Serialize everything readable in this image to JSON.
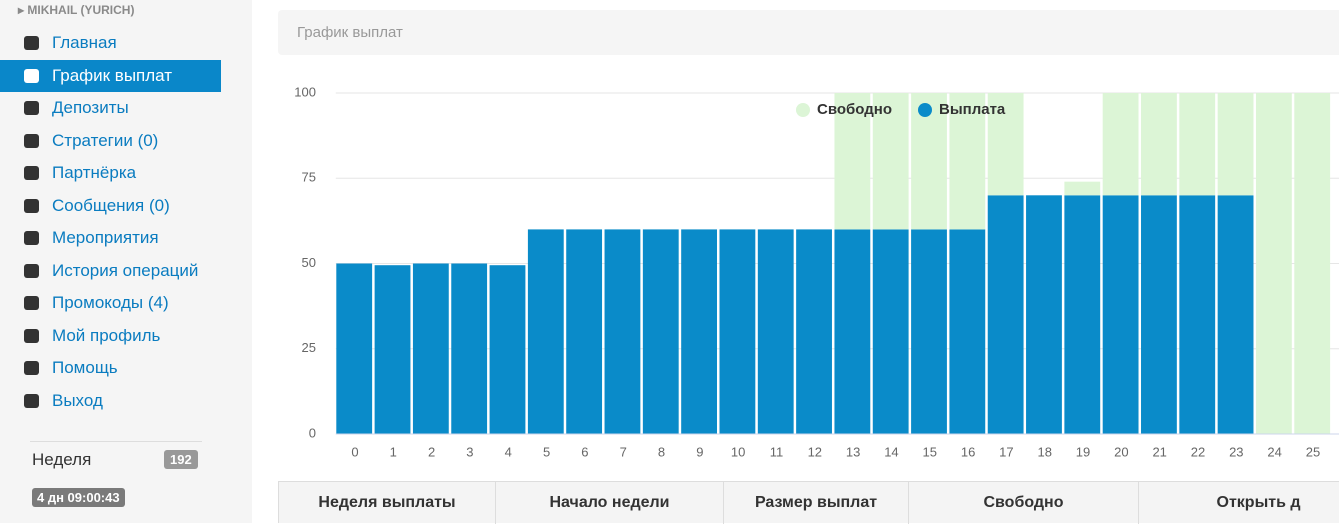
{
  "sidebar": {
    "user": "MIKHAIL (YURICH)",
    "menu": [
      "Главная",
      "График выплат",
      "Депозиты",
      "Стратегии (0)",
      "Партнёрка",
      "Сообщения (0)",
      "Мероприятия",
      "История операций",
      "Промокоды (4)",
      "Мой профиль",
      "Помощь",
      "Выход"
    ],
    "active": 1,
    "week_label": "Неделя",
    "week_badge": "192",
    "timer": "4 дн 09:00:43"
  },
  "panel": {
    "title": "График выплат"
  },
  "chart_data": {
    "type": "stacked-bar",
    "categories": [
      "0",
      "1",
      "2",
      "3",
      "4",
      "5",
      "6",
      "7",
      "8",
      "9",
      "10",
      "11",
      "12",
      "13",
      "14",
      "15",
      "16",
      "17",
      "18",
      "19",
      "20",
      "21",
      "22",
      "23",
      "24",
      "25"
    ],
    "series": [
      {
        "name": "Выплата",
        "color": "#0a8bc9",
        "values": [
          50,
          49.5,
          50,
          50,
          49.5,
          60,
          60,
          60,
          60,
          60,
          60,
          60,
          60,
          60,
          60,
          60,
          60,
          70,
          70,
          70,
          70,
          70,
          70,
          70,
          0,
          0
        ]
      },
      {
        "name": "Свободно",
        "color": "#dcf5d6",
        "values": [
          0,
          0,
          0,
          0,
          0,
          0,
          0,
          0,
          0,
          0,
          0,
          0,
          0,
          40,
          40,
          40,
          40,
          30,
          0,
          4,
          30,
          30,
          30,
          30,
          100,
          100
        ]
      }
    ],
    "legend_order": [
      1,
      0
    ],
    "ylim": [
      0,
      100
    ],
    "yticks": [
      0,
      25,
      50,
      75,
      100
    ],
    "grid": true
  },
  "table": {
    "headers": [
      "Неделя выплаты",
      "Начало недели",
      "Размер выплат",
      "Свободно",
      "Открыть д"
    ]
  }
}
